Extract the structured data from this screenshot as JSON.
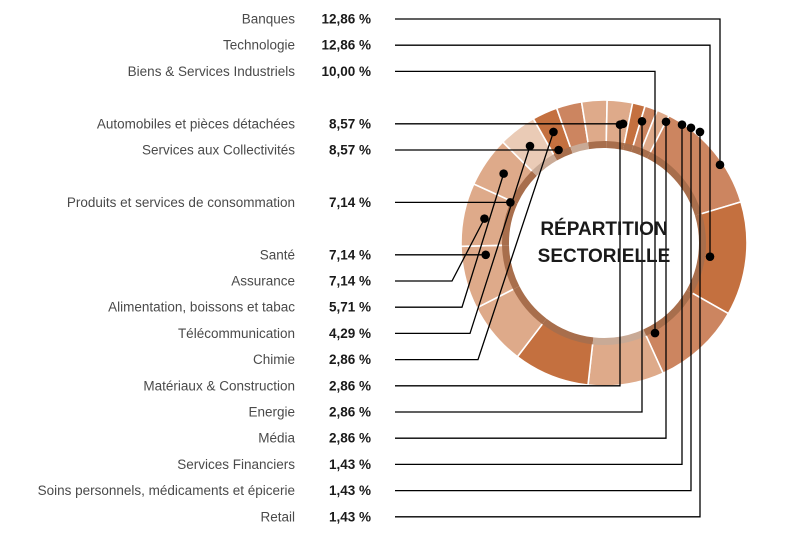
{
  "chart_data": {
    "type": "pie",
    "title": "RÉPARTITION SECTORIELLE",
    "title_lines": [
      "RÉPARTITION",
      "SECTORIELLE"
    ],
    "variant": "donut",
    "segments": [
      {
        "label": "Banques",
        "value": 12.86,
        "display": "12,86 %"
      },
      {
        "label": "Technologie",
        "value": 12.86,
        "display": "12,86 %"
      },
      {
        "label": "Biens & Services Industriels",
        "value": 10.0,
        "display": "10,00 %"
      },
      {
        "label": "Automobiles et pièces détachées",
        "value": 8.57,
        "display": "8,57 %"
      },
      {
        "label": "Services aux Collectivités",
        "value": 8.57,
        "display": "8,57 %"
      },
      {
        "label": "Produits et services de consommation",
        "value": 7.14,
        "display": "7,14 %"
      },
      {
        "label": "Santé",
        "value": 7.14,
        "display": "7,14 %"
      },
      {
        "label": "Assurance",
        "value": 7.14,
        "display": "7,14 %"
      },
      {
        "label": "Alimentation, boissons et tabac",
        "value": 5.71,
        "display": "5,71 %"
      },
      {
        "label": "Télécommunication",
        "value": 4.29,
        "display": "4,29 %"
      },
      {
        "label": "Chimie",
        "value": 2.86,
        "display": "2,86 %"
      },
      {
        "label": "Matériaux & Construction",
        "value": 2.86,
        "display": "2,86 %"
      },
      {
        "label": "Energie",
        "value": 2.86,
        "display": "2,86 %"
      },
      {
        "label": "Média",
        "value": 2.86,
        "display": "2,86 %"
      },
      {
        "label": "Services Financiers",
        "value": 1.43,
        "display": "1,43 %"
      },
      {
        "label": "Soins personnels, médicaments et épicerie",
        "value": 1.43,
        "display": "1,43 %"
      },
      {
        "label": "Retail",
        "value": 1.43,
        "display": "1,43 %"
      }
    ],
    "colors": {
      "dark": "#c4703f",
      "medium": "#cc8560",
      "light": "#deaa8a",
      "pale": "#eacbb6",
      "inner_ring": "#a86e4c",
      "inner_ring_pale": "#c9aa96",
      "leader": "#000000"
    }
  }
}
